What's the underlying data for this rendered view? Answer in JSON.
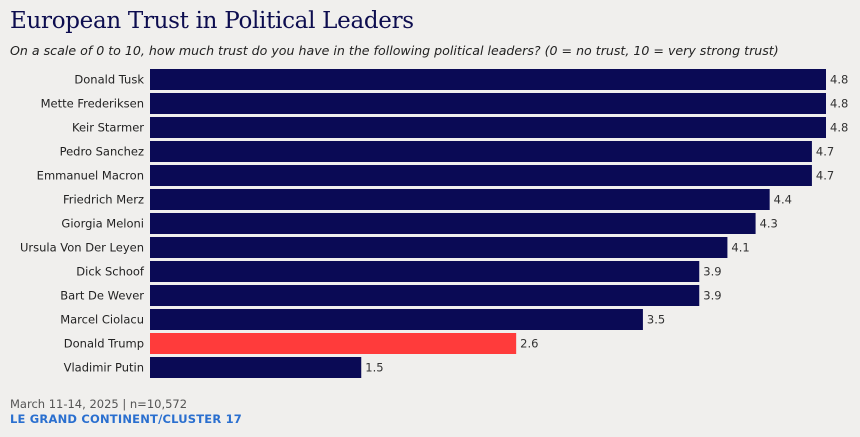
{
  "chart_data": {
    "type": "bar",
    "orientation": "horizontal",
    "title": "European Trust in Political Leaders",
    "subtitle": "On a scale of 0 to 10, how much trust do you have in the following political leaders? (0 = no trust, 10 = very strong trust)",
    "categories": [
      "Donald Tusk",
      "Mette Frederiksen",
      "Keir Starmer",
      "Pedro Sanchez",
      "Emmanuel Macron",
      "Friedrich Merz",
      "Giorgia Meloni",
      "Ursula Von Der Leyen",
      "Dick Schoof",
      "Bart De Wever",
      "Marcel Ciolacu",
      "Donald Trump",
      "Vladimir Putin"
    ],
    "values": [
      4.8,
      4.8,
      4.8,
      4.7,
      4.7,
      4.4,
      4.3,
      4.1,
      3.9,
      3.9,
      3.5,
      2.6,
      1.5
    ],
    "value_labels": [
      "4.8",
      "4.8",
      "4.8",
      "4.7",
      "4.7",
      "4.4",
      "4.3",
      "4.1",
      "3.9",
      "3.9",
      "3.5",
      "2.6",
      "1.5"
    ],
    "highlight": "Donald Trump",
    "xlim": [
      0,
      4.8
    ],
    "grid": false,
    "legend": "none"
  },
  "colors": {
    "bar": "#0a0a55",
    "highlight": "#ff3b3b",
    "background": "#f0efed"
  },
  "footer": {
    "date_sample": "March 11-14, 2025 | n=10,572",
    "source": "LE GRAND CONTINENT/CLUSTER 17"
  }
}
